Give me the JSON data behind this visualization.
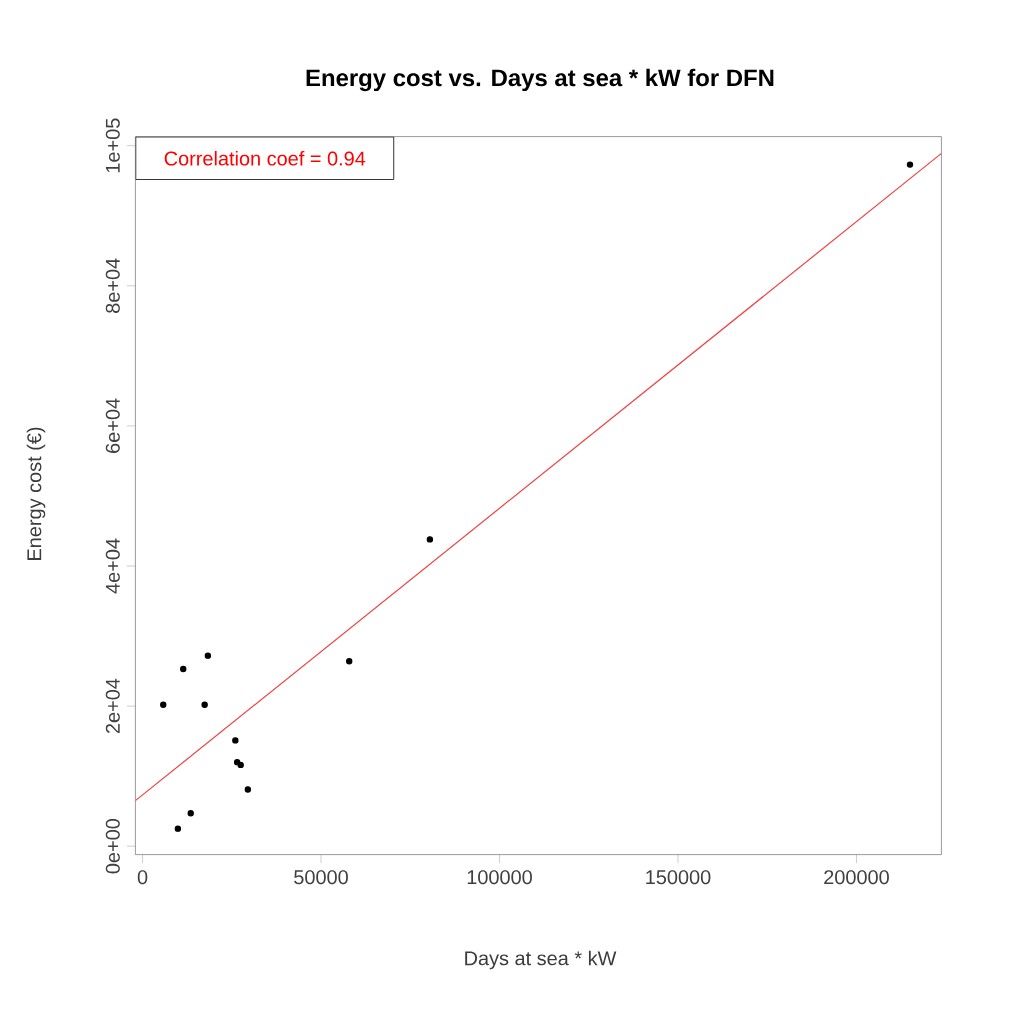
{
  "chart_data": {
    "type": "scatter",
    "title": "Energy cost vs. Days at sea * kW for DFN",
    "xlabel": "Days at sea * kW",
    "ylabel": "Energy cost (€)",
    "xlim": [
      -2000,
      223800
    ],
    "ylim": [
      -1200,
      101300
    ],
    "xticks": [
      0,
      50000,
      100000,
      150000,
      200000
    ],
    "yticks": [
      {
        "value": 0,
        "label": "0e+00"
      },
      {
        "value": 20000,
        "label": "2e+04"
      },
      {
        "value": 40000,
        "label": "4e+04"
      },
      {
        "value": 60000,
        "label": "6e+04"
      },
      {
        "value": 80000,
        "label": "8e+04"
      },
      {
        "value": 100000,
        "label": "1e+05"
      }
    ],
    "annotations": [
      "Correlation coef =  0.94"
    ],
    "series": [
      {
        "color": "#000000",
        "marker": "circle",
        "x": [
          5800,
          11400,
          18300,
          17400,
          57900,
          26000,
          26500,
          27500,
          29500,
          13500,
          9900,
          80500,
          215000
        ],
        "values": [
          20200,
          25300,
          27200,
          20200,
          26400,
          15100,
          12000,
          11600,
          8100,
          4700,
          2500,
          43800,
          97300
        ]
      },
      {
        "type": "line",
        "color": "#f04040",
        "marker": "none",
        "x": [
          -2000,
          223800
        ],
        "values": [
          6500,
          98900
        ]
      }
    ]
  }
}
